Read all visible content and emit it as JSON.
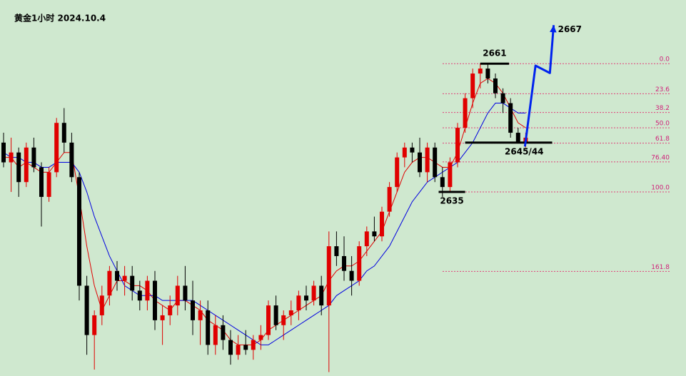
{
  "chart_data": {
    "type": "candlestick",
    "title": "黄金1小时 2024.10.4",
    "ylim": [
      2597.7,
      2673.9
    ],
    "candles": {
      "open": [
        2645,
        2641,
        2643,
        2637,
        2644,
        2640,
        2634,
        2639,
        2649,
        2645,
        2638,
        2616,
        2606,
        2610,
        2614,
        2619,
        2617,
        2618,
        2615,
        2613,
        2617,
        2609,
        2610,
        2612,
        2616,
        2613,
        2609,
        2611,
        2604,
        2608,
        2605,
        2602,
        2604,
        2603,
        2605,
        2606,
        2612,
        2608,
        2610,
        2611,
        2614,
        2613,
        2616,
        2612,
        2624,
        2622,
        2619,
        2617,
        2624,
        2627,
        2626,
        2631,
        2636,
        2642,
        2644,
        2643,
        2639,
        2644,
        2638,
        2636,
        2641,
        2648,
        2654,
        2659,
        2660,
        2658,
        2655,
        2653,
        2647,
        2645
      ],
      "high": [
        2647,
        2646,
        2644,
        2645,
        2646,
        2641,
        2640,
        2650,
        2652,
        2647,
        2639,
        2618,
        2611,
        2616,
        2620,
        2621,
        2620,
        2620,
        2617,
        2618,
        2619,
        2612,
        2614,
        2618,
        2620,
        2617,
        2613,
        2613,
        2610,
        2610,
        2607,
        2606,
        2607,
        2606,
        2608,
        2613,
        2614,
        2611,
        2613,
        2615,
        2616,
        2617,
        2618,
        2627,
        2627,
        2626,
        2622,
        2625,
        2628,
        2630,
        2632,
        2637,
        2643,
        2645,
        2645,
        2646,
        2645,
        2645,
        2640,
        2642,
        2649,
        2655,
        2660,
        2661,
        2661,
        2659,
        2656,
        2654,
        2648,
        2647
      ],
      "low": [
        2640,
        2635,
        2634,
        2636,
        2639,
        2628,
        2633,
        2638,
        2643,
        2637,
        2613,
        2602,
        2599,
        2608,
        2612,
        2615,
        2614,
        2613,
        2611,
        2611,
        2607,
        2604,
        2608,
        2610,
        2611,
        2606,
        2604,
        2602,
        2602,
        2603,
        2600,
        2601,
        2602,
        2601,
        2603,
        2605,
        2607,
        2605,
        2608,
        2609,
        2611,
        2612,
        2610,
        2598.5,
        2620,
        2617,
        2614,
        2616,
        2622,
        2625,
        2625,
        2630,
        2635,
        2640,
        2641,
        2638,
        2637,
        2637,
        2634,
        2635,
        2640,
        2647,
        2652,
        2656,
        2657,
        2654,
        2651,
        2646,
        2645,
        2644
      ],
      "close": [
        2641,
        2643,
        2637,
        2644,
        2640,
        2634,
        2639,
        2649,
        2645,
        2638,
        2616,
        2606,
        2610,
        2614,
        2619,
        2617,
        2618,
        2615,
        2613,
        2617,
        2609,
        2610,
        2612,
        2616,
        2613,
        2609,
        2611,
        2604,
        2608,
        2605,
        2602,
        2604,
        2603,
        2605,
        2606,
        2612,
        2608,
        2610,
        2611,
        2614,
        2613,
        2616,
        2612,
        2624,
        2622,
        2619,
        2617,
        2624,
        2627,
        2626,
        2631,
        2636,
        2642,
        2644,
        2643,
        2639,
        2644,
        2638,
        2636,
        2641,
        2648,
        2654,
        2659,
        2660,
        2658,
        2655,
        2653,
        2647,
        2645,
        2646
      ]
    },
    "up_color": "#e00000",
    "down_color": "#000000",
    "series": [
      {
        "color": "#e00000",
        "values": [
          2642,
          2642,
          2640,
          2641,
          2640,
          2639,
          2639,
          2641,
          2643,
          2643,
          2634,
          2624,
          2616,
          2611,
          2614,
          2617,
          2617,
          2616,
          2616,
          2615,
          2613,
          2612,
          2611,
          2613,
          2613,
          2612,
          2611,
          2609,
          2608,
          2607,
          2605,
          2604,
          2604,
          2604,
          2605,
          2607,
          2608,
          2609,
          2610,
          2611,
          2612,
          2613,
          2614,
          2617,
          2619,
          2620,
          2620,
          2621,
          2623,
          2625,
          2627,
          2631,
          2635,
          2639,
          2641,
          2642,
          2642,
          2641,
          2640,
          2640,
          2643,
          2648,
          2653,
          2657,
          2658,
          2657,
          2655,
          2652,
          2649,
          2648
        ]
      },
      {
        "color": "#0000e0",
        "values": [
          2643,
          2642,
          2642,
          2641,
          2641,
          2640,
          2640,
          2641,
          2641,
          2641,
          2639,
          2635,
          2630,
          2626,
          2622,
          2619,
          2616,
          2615,
          2614,
          2614,
          2614,
          2613,
          2613,
          2613,
          2613,
          2613,
          2612,
          2611,
          2610,
          2609,
          2608,
          2607,
          2606,
          2605,
          2604,
          2604,
          2605,
          2606,
          2607,
          2608,
          2609,
          2610,
          2611,
          2612,
          2614,
          2615,
          2616,
          2617,
          2619,
          2620,
          2622,
          2624,
          2627,
          2630,
          2633,
          2635,
          2637,
          2638,
          2639,
          2640,
          2641,
          2643,
          2645,
          2648,
          2651,
          2653,
          2653,
          2652,
          2651,
          2651
        ]
      }
    ],
    "fib_levels": [
      {
        "value": 2661,
        "label": "0.0"
      },
      {
        "value": 2654.9,
        "label": "23.6"
      },
      {
        "value": 2651.1,
        "label": "38.2"
      },
      {
        "value": 2648,
        "label": "50.0"
      },
      {
        "value": 2644.9,
        "label": "61.8"
      },
      {
        "value": 2641.1,
        "label": "76.40"
      },
      {
        "value": 2635,
        "label": "100.0"
      },
      {
        "value": 2618.9,
        "label": "161.8"
      }
    ],
    "key_levels": [
      {
        "value": 2661,
        "label": "2661"
      },
      {
        "value": 2635,
        "label": "2635"
      },
      {
        "value": 2645,
        "label": "2645/44"
      }
    ],
    "projection": {
      "label": "2667",
      "color": "#0022ee",
      "x": [
        68.9,
        70.3,
        72.2,
        72.7
      ],
      "values": [
        2644.2,
        2660.6,
        2659.1,
        2668.8
      ]
    }
  }
}
